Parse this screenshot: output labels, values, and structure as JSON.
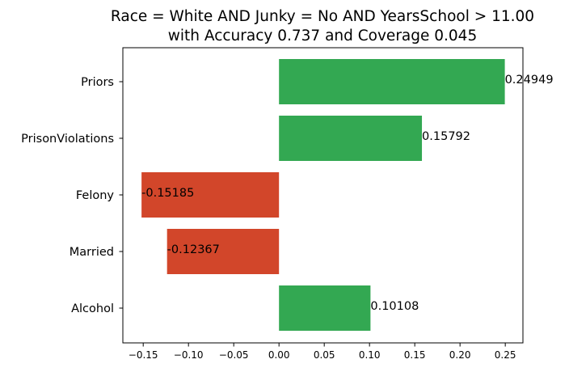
{
  "chart_data": {
    "type": "bar",
    "orientation": "horizontal",
    "title": "Race = White AND Junky = No AND YearsSchool > 11.00",
    "subtitle": "with Accuracy 0.737 and Coverage 0.045",
    "categories": [
      "Priors",
      "PrisonViolations",
      "Felony",
      "Married",
      "Alcohol"
    ],
    "values": [
      0.24949,
      0.15792,
      -0.15185,
      -0.12367,
      0.10108
    ],
    "value_labels": [
      "0.24949",
      "0.15792",
      "-0.15185",
      "-0.12367",
      "0.10108"
    ],
    "xlim": [
      -0.1725,
      0.2695
    ],
    "xticks": [
      -0.15,
      -0.1,
      -0.05,
      0.0,
      0.05,
      0.1,
      0.15,
      0.2,
      0.25
    ],
    "xtick_labels": [
      "−0.15",
      "−0.10",
      "−0.05",
      "0.00",
      "0.05",
      "0.10",
      "0.15",
      "0.20",
      "0.25"
    ],
    "positive_color": "#33a852",
    "negative_color": "#d2462a",
    "grid": false,
    "legend": "none"
  }
}
